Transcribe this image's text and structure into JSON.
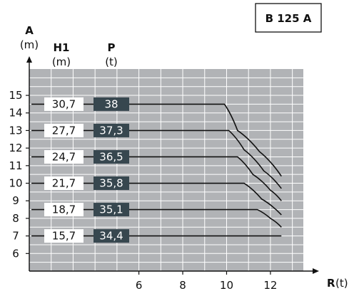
{
  "chart_data": {
    "type": "line",
    "model": "B 125 A",
    "y_axis": {
      "label": "A",
      "unit": "(m)",
      "ticks": [
        6,
        7,
        8,
        9,
        10,
        11,
        12,
        13,
        14,
        15
      ],
      "range": [
        5.0,
        16.5
      ]
    },
    "x_axis": {
      "label": "R",
      "unit": "(t)",
      "ticks": [
        6,
        8,
        10,
        12
      ],
      "range": [
        1.0,
        13.5
      ]
    },
    "columns": {
      "h1": {
        "label": "H1",
        "unit": "(m)"
      },
      "p": {
        "label": "P",
        "unit": "(t)"
      }
    },
    "series": [
      {
        "h1": "30,7",
        "p": "38",
        "y": 14.5,
        "points": [
          [
            1.1,
            14.5
          ],
          [
            9.9,
            14.5
          ],
          [
            10.5,
            13.0
          ],
          [
            11.5,
            11.8
          ],
          [
            12.5,
            10.4
          ]
        ]
      },
      {
        "h1": "27,7",
        "p": "37,3",
        "y": 13.0,
        "points": [
          [
            1.1,
            13.0
          ],
          [
            10.1,
            13.0
          ],
          [
            10.8,
            11.9
          ],
          [
            11.7,
            10.7
          ],
          [
            12.5,
            9.7
          ]
        ]
      },
      {
        "h1": "24,7",
        "p": "36,5",
        "y": 11.5,
        "points": [
          [
            1.1,
            11.5
          ],
          [
            10.5,
            11.5
          ],
          [
            11.2,
            10.5
          ],
          [
            12.0,
            9.6
          ],
          [
            12.5,
            9.0
          ]
        ]
      },
      {
        "h1": "21,7",
        "p": "35,8",
        "y": 10.0,
        "points": [
          [
            1.1,
            10.0
          ],
          [
            10.8,
            10.0
          ],
          [
            11.6,
            9.1
          ],
          [
            12.5,
            8.2
          ]
        ]
      },
      {
        "h1": "18,7",
        "p": "35,1",
        "y": 8.5,
        "points": [
          [
            1.1,
            8.5
          ],
          [
            11.4,
            8.5
          ],
          [
            12.0,
            8.0
          ],
          [
            12.5,
            7.5
          ]
        ]
      },
      {
        "h1": "15,7",
        "p": "34,4",
        "y": 7.0,
        "points": [
          [
            1.1,
            7.0
          ],
          [
            12.5,
            7.0
          ]
        ]
      }
    ],
    "grid": true,
    "colors": {
      "plot_bg": "#b1b3b6",
      "grid": "#ffffff",
      "p_label_bg": "#37474f",
      "line": "#111111"
    }
  }
}
